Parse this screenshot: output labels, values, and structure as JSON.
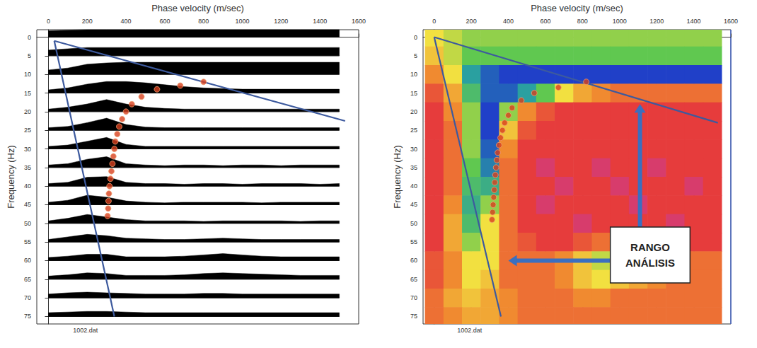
{
  "chart_data": [
    {
      "type": "wiggle",
      "xlabel": "Phase velocity (m/sec)",
      "ylabel": "Frequency (Hz)",
      "xlim": [
        -60,
        1600
      ],
      "xticks": [
        0,
        200,
        400,
        600,
        800,
        1000,
        1200,
        1400,
        1600
      ],
      "ylim": [
        -2,
        77
      ],
      "yticks": [
        0,
        5,
        10,
        15,
        20,
        25,
        30,
        35,
        40,
        45,
        50,
        55,
        60,
        65,
        70,
        75
      ],
      "grid": false,
      "velocities": [
        0,
        100,
        200,
        300,
        400,
        500,
        600,
        700,
        800,
        900,
        1000,
        1100,
        1200,
        1300,
        1400,
        1500
      ],
      "frequencies": [
        0,
        5,
        10,
        15,
        20,
        25,
        30,
        35,
        40,
        45,
        50,
        55,
        60,
        65,
        70,
        75
      ],
      "amplitude": [
        [
          0.5,
          0.55,
          0.6,
          0.6,
          0.6,
          0.6,
          0.6,
          0.6,
          0.6,
          0.6,
          0.6,
          0.6,
          0.6,
          0.6,
          0.6,
          0.6
        ],
        [
          0.45,
          0.55,
          0.65,
          0.65,
          0.65,
          0.65,
          0.65,
          0.65,
          0.65,
          0.65,
          0.65,
          0.65,
          0.65,
          0.65,
          0.65,
          0.65
        ],
        [
          0.35,
          0.5,
          0.8,
          0.9,
          0.95,
          0.95,
          0.95,
          0.95,
          0.95,
          0.95,
          0.95,
          0.95,
          0.95,
          0.95,
          0.95,
          0.95
        ],
        [
          0.25,
          0.4,
          0.7,
          0.9,
          0.9,
          0.8,
          0.65,
          0.5,
          0.4,
          0.35,
          0.3,
          0.3,
          0.3,
          0.3,
          0.3,
          0.3
        ],
        [
          0.2,
          0.35,
          0.6,
          0.95,
          0.6,
          0.35,
          0.25,
          0.2,
          0.2,
          0.2,
          0.2,
          0.2,
          0.2,
          0.2,
          0.2,
          0.2
        ],
        [
          0.2,
          0.3,
          0.6,
          0.95,
          0.45,
          0.25,
          0.2,
          0.2,
          0.2,
          0.2,
          0.2,
          0.2,
          0.2,
          0.2,
          0.2,
          0.2
        ],
        [
          0.2,
          0.3,
          0.6,
          0.9,
          0.35,
          0.2,
          0.2,
          0.2,
          0.2,
          0.2,
          0.2,
          0.2,
          0.2,
          0.2,
          0.2,
          0.2
        ],
        [
          0.2,
          0.3,
          0.65,
          0.85,
          0.3,
          0.2,
          0.15,
          0.2,
          0.2,
          0.15,
          0.2,
          0.2,
          0.15,
          0.2,
          0.2,
          0.2
        ],
        [
          0.2,
          0.3,
          0.7,
          0.75,
          0.3,
          0.2,
          0.2,
          0.15,
          0.2,
          0.2,
          0.15,
          0.2,
          0.2,
          0.2,
          0.15,
          0.2
        ],
        [
          0.2,
          0.35,
          0.75,
          0.6,
          0.3,
          0.2,
          0.15,
          0.2,
          0.2,
          0.2,
          0.2,
          0.15,
          0.2,
          0.2,
          0.2,
          0.2
        ],
        [
          0.2,
          0.4,
          0.7,
          0.5,
          0.3,
          0.2,
          0.2,
          0.2,
          0.15,
          0.2,
          0.2,
          0.2,
          0.2,
          0.15,
          0.2,
          0.2
        ],
        [
          0.2,
          0.4,
          0.6,
          0.5,
          0.3,
          0.25,
          0.2,
          0.2,
          0.25,
          0.3,
          0.25,
          0.2,
          0.2,
          0.2,
          0.2,
          0.2
        ],
        [
          0.25,
          0.35,
          0.5,
          0.5,
          0.3,
          0.3,
          0.3,
          0.35,
          0.45,
          0.55,
          0.45,
          0.35,
          0.3,
          0.3,
          0.3,
          0.3
        ],
        [
          0.25,
          0.35,
          0.5,
          0.45,
          0.3,
          0.3,
          0.3,
          0.35,
          0.45,
          0.5,
          0.45,
          0.4,
          0.35,
          0.3,
          0.3,
          0.3
        ],
        [
          0.3,
          0.4,
          0.45,
          0.4,
          0.35,
          0.3,
          0.3,
          0.3,
          0.35,
          0.35,
          0.3,
          0.3,
          0.3,
          0.3,
          0.3,
          0.3
        ],
        [
          0.3,
          0.35,
          0.4,
          0.4,
          0.35,
          0.3,
          0.3,
          0.3,
          0.3,
          0.3,
          0.3,
          0.3,
          0.3,
          0.3,
          0.3,
          0.3
        ]
      ],
      "color": "#000000",
      "picks": {
        "x": [
          800,
          680,
          560,
          480,
          430,
          400,
          380,
          365,
          355,
          345,
          340,
          335,
          330,
          325,
          320,
          315,
          312,
          310,
          308,
          305
        ],
        "y": [
          12,
          13,
          14,
          16,
          18,
          20,
          22,
          24,
          26,
          28,
          30,
          32,
          34,
          36,
          38,
          40,
          42,
          44,
          46,
          48
        ],
        "color": "#d8401e",
        "marker": "circle"
      },
      "lines": [
        {
          "x": [
            30,
            1530
          ],
          "y": [
            1,
            22.5
          ],
          "color": "#3d5a9e"
        },
        {
          "x": [
            30,
            340
          ],
          "y": [
            1,
            75
          ],
          "color": "#3d5a9e"
        }
      ],
      "file_label": "1002.dat"
    },
    {
      "type": "heatmap",
      "xlabel": "Phase velocity (m/sec)",
      "ylabel": "Frequency (Hz)",
      "xlim": [
        -60,
        1600
      ],
      "xticks": [
        0,
        200,
        400,
        600,
        800,
        1000,
        1200,
        1400,
        1600
      ],
      "ylim": [
        -2,
        77
      ],
      "yticks": [
        0,
        5,
        10,
        15,
        20,
        25,
        30,
        35,
        40,
        45,
        50,
        55,
        60,
        65,
        70,
        75
      ],
      "grid": true,
      "velocities": [
        0,
        100,
        200,
        300,
        400,
        500,
        600,
        700,
        800,
        900,
        1000,
        1100,
        1200,
        1300,
        1400,
        1500
      ],
      "frequencies": [
        0,
        5,
        10,
        15,
        20,
        25,
        30,
        35,
        40,
        45,
        50,
        55,
        60,
        65,
        70,
        75
      ],
      "energy": [
        [
          0.5,
          0.55,
          0.6,
          0.6,
          0.6,
          0.6,
          0.6,
          0.6,
          0.6,
          0.6,
          0.6,
          0.6,
          0.6,
          0.6,
          0.6,
          0.6
        ],
        [
          0.45,
          0.55,
          0.65,
          0.65,
          0.65,
          0.65,
          0.65,
          0.65,
          0.65,
          0.65,
          0.65,
          0.65,
          0.65,
          0.65,
          0.65,
          0.65
        ],
        [
          0.35,
          0.5,
          0.8,
          0.9,
          0.95,
          0.95,
          0.95,
          0.95,
          0.95,
          0.95,
          0.95,
          0.95,
          0.95,
          0.95,
          0.95,
          0.95
        ],
        [
          0.25,
          0.4,
          0.7,
          0.9,
          0.9,
          0.8,
          0.65,
          0.5,
          0.4,
          0.35,
          0.3,
          0.3,
          0.3,
          0.3,
          0.3,
          0.3
        ],
        [
          0.2,
          0.35,
          0.6,
          0.95,
          0.6,
          0.35,
          0.25,
          0.2,
          0.2,
          0.2,
          0.2,
          0.2,
          0.2,
          0.2,
          0.2,
          0.2
        ],
        [
          0.2,
          0.3,
          0.6,
          0.95,
          0.45,
          0.25,
          0.2,
          0.2,
          0.2,
          0.2,
          0.2,
          0.2,
          0.2,
          0.2,
          0.2,
          0.2
        ],
        [
          0.2,
          0.3,
          0.6,
          0.9,
          0.35,
          0.2,
          0.2,
          0.2,
          0.2,
          0.2,
          0.2,
          0.2,
          0.2,
          0.2,
          0.2,
          0.2
        ],
        [
          0.2,
          0.3,
          0.65,
          0.85,
          0.3,
          0.2,
          0.15,
          0.2,
          0.2,
          0.15,
          0.2,
          0.2,
          0.15,
          0.2,
          0.2,
          0.2
        ],
        [
          0.2,
          0.3,
          0.7,
          0.75,
          0.3,
          0.2,
          0.2,
          0.15,
          0.2,
          0.2,
          0.15,
          0.2,
          0.2,
          0.2,
          0.15,
          0.2
        ],
        [
          0.2,
          0.35,
          0.75,
          0.6,
          0.3,
          0.2,
          0.15,
          0.2,
          0.2,
          0.2,
          0.2,
          0.15,
          0.2,
          0.2,
          0.2,
          0.2
        ],
        [
          0.2,
          0.4,
          0.7,
          0.5,
          0.3,
          0.2,
          0.2,
          0.2,
          0.15,
          0.2,
          0.2,
          0.2,
          0.2,
          0.15,
          0.2,
          0.2
        ],
        [
          0.2,
          0.4,
          0.6,
          0.5,
          0.3,
          0.25,
          0.2,
          0.2,
          0.25,
          0.3,
          0.25,
          0.2,
          0.2,
          0.2,
          0.2,
          0.2
        ],
        [
          0.25,
          0.35,
          0.5,
          0.5,
          0.3,
          0.3,
          0.3,
          0.35,
          0.45,
          0.55,
          0.45,
          0.35,
          0.3,
          0.3,
          0.3,
          0.3
        ],
        [
          0.25,
          0.35,
          0.5,
          0.45,
          0.3,
          0.3,
          0.3,
          0.35,
          0.45,
          0.5,
          0.45,
          0.4,
          0.35,
          0.3,
          0.3,
          0.3
        ],
        [
          0.3,
          0.4,
          0.45,
          0.4,
          0.35,
          0.3,
          0.3,
          0.3,
          0.35,
          0.35,
          0.3,
          0.3,
          0.3,
          0.3,
          0.3,
          0.3
        ],
        [
          0.3,
          0.35,
          0.4,
          0.4,
          0.35,
          0.3,
          0.3,
          0.3,
          0.3,
          0.3,
          0.3,
          0.3,
          0.3,
          0.3,
          0.3,
          0.3
        ]
      ],
      "picks": {
        "x": [
          820,
          670,
          540,
          470,
          420,
          400,
          380,
          368,
          358,
          350,
          343,
          338,
          334,
          330,
          327,
          324,
          321,
          318,
          315,
          312
        ],
        "y": [
          12,
          13.5,
          15,
          17,
          19,
          21,
          23,
          25,
          27,
          29,
          31,
          33,
          35,
          37,
          39,
          41,
          43,
          45,
          47,
          49
        ],
        "color": "#d8401e",
        "marker": "circle"
      },
      "lines": [
        {
          "x": [
            0,
            1530
          ],
          "y": [
            0,
            23
          ],
          "color": "#3d5a9e"
        },
        {
          "x": [
            0,
            360
          ],
          "y": [
            0,
            75
          ],
          "color": "#3d5a9e"
        }
      ],
      "annotation": "RANGO ANÁLISIS",
      "file_label": "1002.dat"
    }
  ]
}
